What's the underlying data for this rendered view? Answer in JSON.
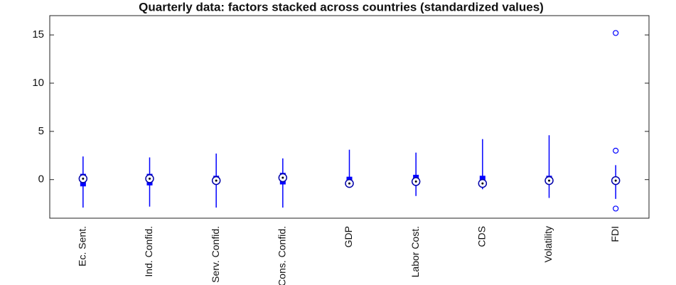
{
  "chart_data": {
    "type": "box",
    "title": "Quarterly data: factors stacked across countries (standardized values)",
    "categories": [
      "Ec. Sent.",
      "Ind. Confid.",
      "Serv. Confid.",
      "Cons. Confid.",
      "GDP",
      "Labor Cost.",
      "CDS",
      "Volatility",
      "FDI"
    ],
    "whisker_low": [
      -2.9,
      -2.8,
      -2.9,
      -2.9,
      -0.6,
      -1.7,
      -1.0,
      -1.9,
      -2.0
    ],
    "q1": [
      -0.7,
      -0.6,
      -0.3,
      -0.5,
      -0.5,
      -0.4,
      -0.5,
      -0.3,
      -0.3
    ],
    "median": [
      0.1,
      0.1,
      -0.1,
      0.2,
      -0.4,
      -0.2,
      -0.4,
      -0.1,
      -0.1
    ],
    "q3": [
      0.6,
      0.6,
      0.4,
      0.7,
      0.3,
      0.5,
      0.4,
      0.4,
      0.1
    ],
    "whisker_high": [
      2.4,
      2.3,
      2.7,
      2.2,
      3.1,
      2.8,
      4.2,
      4.6,
      1.5
    ],
    "outliers": [
      [],
      [],
      [],
      [],
      [],
      [],
      [],
      [],
      [
        15.2,
        3.0,
        -3.0
      ]
    ],
    "color": "#0000ff",
    "ylim": [
      -4,
      17
    ],
    "yticks": [
      0,
      5,
      10,
      15
    ],
    "grid": false
  }
}
